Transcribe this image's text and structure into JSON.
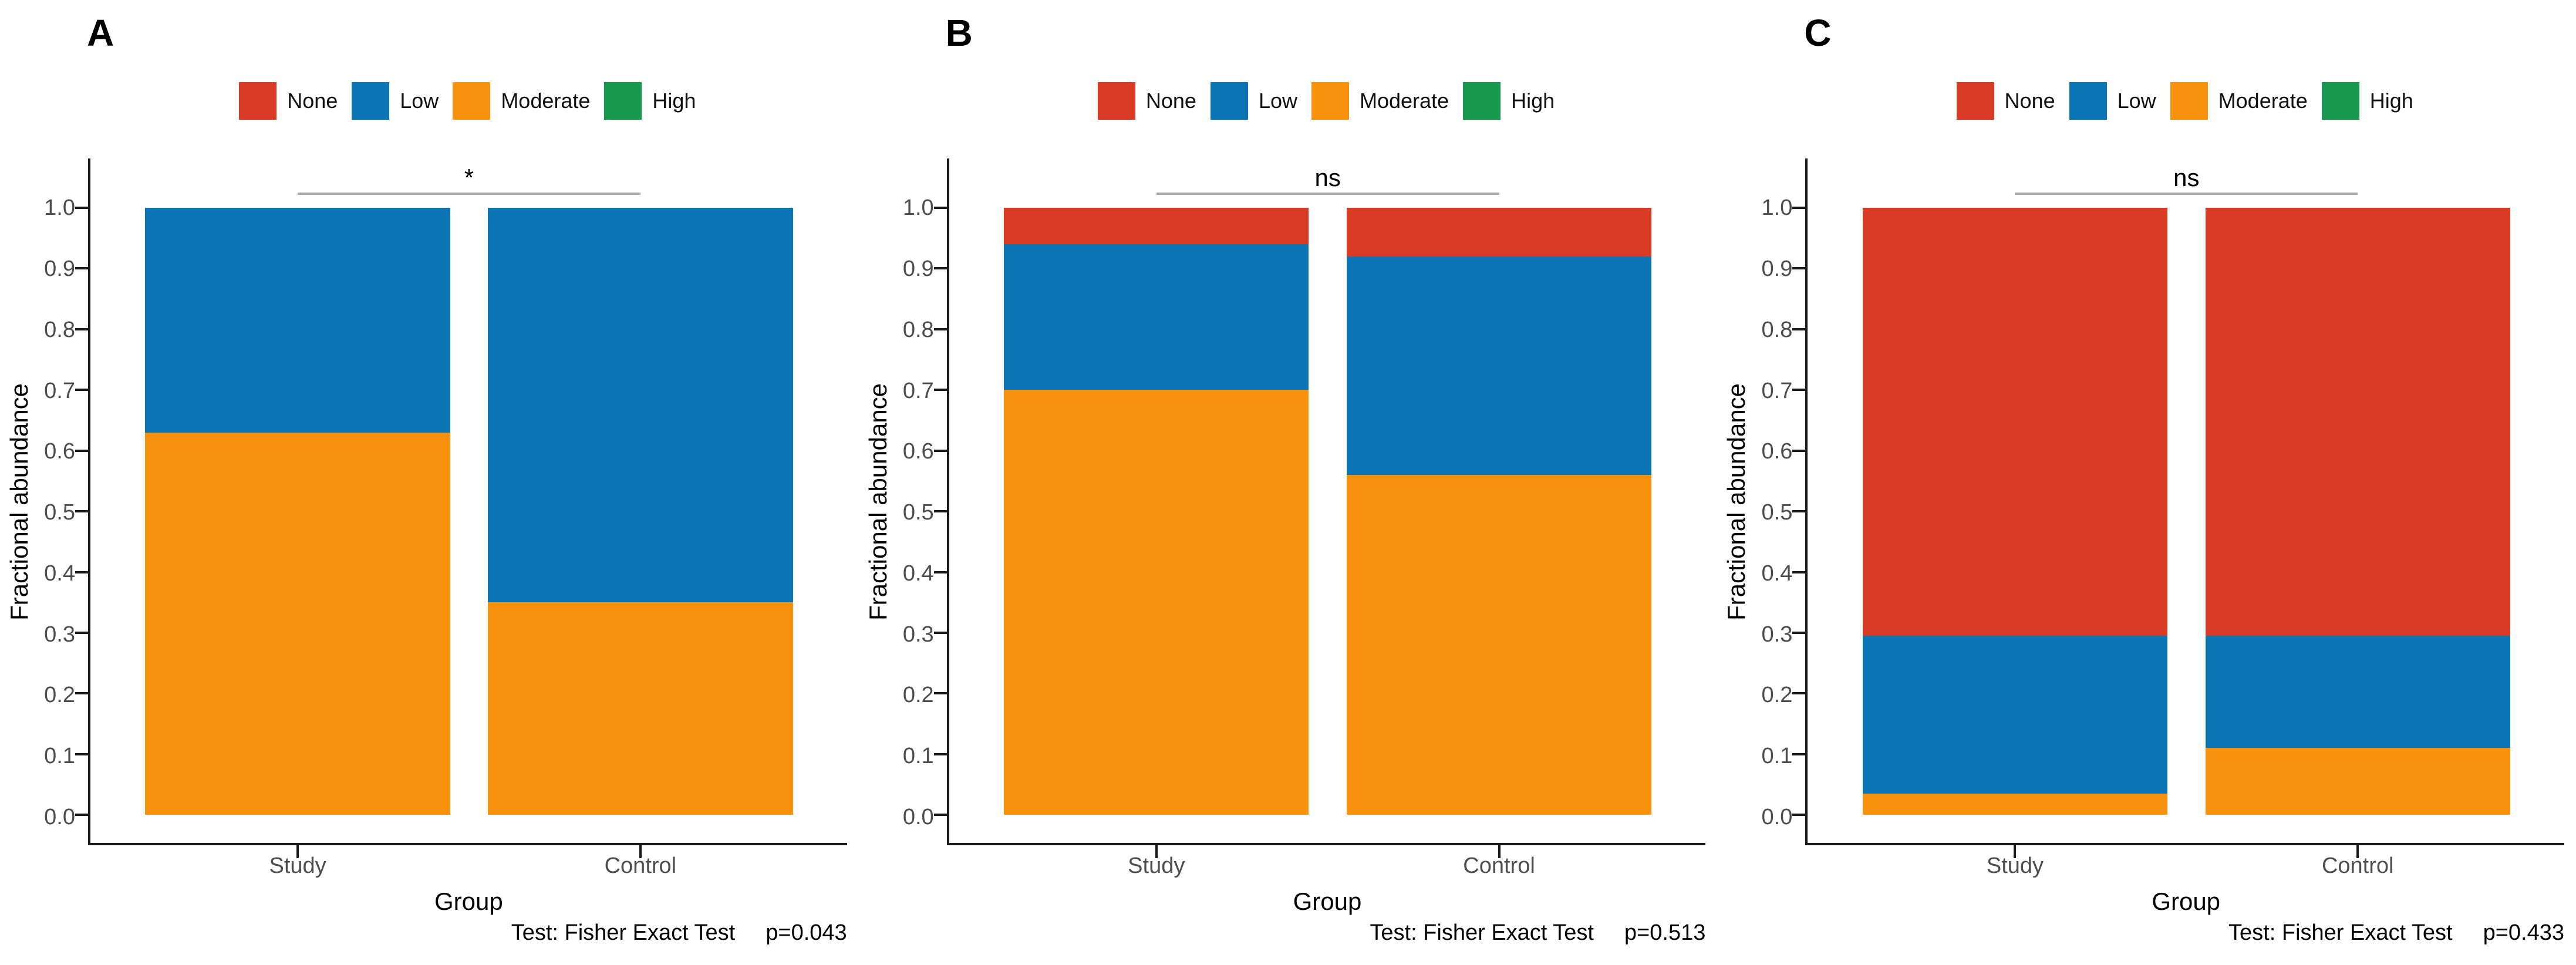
{
  "panels": [
    {
      "label": "A",
      "significance": "*",
      "caption_test": "Test: Fisher Exact Test",
      "caption_p": "p=0.043"
    },
    {
      "label": "B",
      "significance": "ns",
      "caption_test": "Test: Fisher Exact Test",
      "caption_p": "p=0.513"
    },
    {
      "label": "C",
      "significance": "ns",
      "caption_test": "Test: Fisher Exact Test",
      "caption_p": "p=0.433"
    }
  ],
  "legend": {
    "items": [
      {
        "label": "None",
        "color": "#D93A23"
      },
      {
        "label": "Low",
        "color": "#0B74B5"
      },
      {
        "label": "Moderate",
        "color": "#F8920E"
      },
      {
        "label": "High",
        "color": "#17994F"
      }
    ]
  },
  "axes": {
    "y_label": "Fractional abundance",
    "x_label": "Group",
    "yticks": [
      "0.0",
      "0.1",
      "0.2",
      "0.3",
      "0.4",
      "0.5",
      "0.6",
      "0.7",
      "0.8",
      "0.9",
      "1.0"
    ],
    "categories": [
      "Study",
      "Control"
    ]
  },
  "colors": {
    "axis_line": "#1a1a1a",
    "tick_text": "#4d4d4d",
    "bracket_line": "#a8a8a8"
  },
  "chart_data": [
    {
      "type": "bar",
      "stacked": true,
      "panel": "A",
      "title": "A",
      "categories": [
        "Study",
        "Control"
      ],
      "stack_order": [
        "Moderate",
        "Low",
        "None",
        "High"
      ],
      "series": [
        {
          "name": "Moderate",
          "values": [
            0.63,
            0.35
          ]
        },
        {
          "name": "Low",
          "values": [
            0.37,
            0.65
          ]
        },
        {
          "name": "None",
          "values": [
            0,
            0
          ]
        },
        {
          "name": "High",
          "values": [
            0,
            0
          ]
        }
      ],
      "xlabel": "Group",
      "ylabel": "Fractional abundance",
      "ylim": [
        0,
        1
      ],
      "grid": false,
      "legend_position": "top",
      "significance": "*",
      "annotation": "Test: Fisher Exact Test p=0.043"
    },
    {
      "type": "bar",
      "stacked": true,
      "panel": "B",
      "title": "B",
      "categories": [
        "Study",
        "Control"
      ],
      "stack_order": [
        "Moderate",
        "Low",
        "None",
        "High"
      ],
      "series": [
        {
          "name": "Moderate",
          "values": [
            0.7,
            0.56
          ]
        },
        {
          "name": "Low",
          "values": [
            0.24,
            0.36
          ]
        },
        {
          "name": "None",
          "values": [
            0.06,
            0.08
          ]
        },
        {
          "name": "High",
          "values": [
            0,
            0
          ]
        }
      ],
      "xlabel": "Group",
      "ylabel": "Fractional abundance",
      "ylim": [
        0,
        1
      ],
      "grid": false,
      "legend_position": "top",
      "significance": "ns",
      "annotation": "Test: Fisher Exact Test p=0.513"
    },
    {
      "type": "bar",
      "stacked": true,
      "panel": "C",
      "title": "C",
      "categories": [
        "Study",
        "Control"
      ],
      "stack_order": [
        "Moderate",
        "Low",
        "None",
        "High"
      ],
      "series": [
        {
          "name": "Moderate",
          "values": [
            0.035,
            0.11
          ]
        },
        {
          "name": "Low",
          "values": [
            0.26,
            0.185
          ]
        },
        {
          "name": "None",
          "values": [
            0.705,
            0.705
          ]
        },
        {
          "name": "High",
          "values": [
            0,
            0
          ]
        }
      ],
      "xlabel": "Group",
      "ylabel": "Fractional abundance",
      "ylim": [
        0,
        1
      ],
      "grid": false,
      "legend_position": "top",
      "significance": "ns",
      "annotation": "Test: Fisher Exact Test p=0.433"
    }
  ]
}
